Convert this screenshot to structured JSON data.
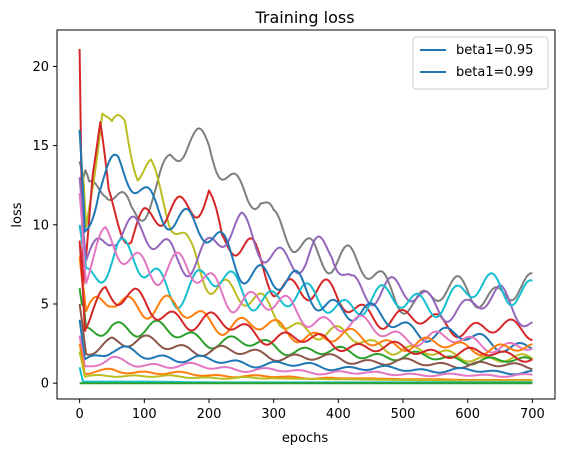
{
  "chart_data": {
    "type": "line",
    "title": "Training loss",
    "xlabel": "epochs",
    "ylabel": "loss",
    "xlim": [
      -35,
      735
    ],
    "ylim": [
      -1,
      22.3
    ],
    "xticks": [
      0,
      100,
      200,
      300,
      400,
      500,
      600,
      700
    ],
    "yticks": [
      0,
      5,
      10,
      15,
      20
    ],
    "legend_placement": "top-right",
    "grid": false,
    "legend": [
      {
        "name": "beta1=0.95",
        "color": "#1f77b4"
      },
      {
        "name": "beta1=0.99",
        "color": "#1f77b4"
      }
    ],
    "series_colors": [
      "#1f77b4",
      "#ff7f0e",
      "#2ca02c",
      "#d62728",
      "#9467bd",
      "#8c564b",
      "#e377c2",
      "#7f7f7f",
      "#bcbd22",
      "#17becf"
    ],
    "series": [
      {
        "color": "#7f7f7f",
        "points": [
          [
            0,
            14
          ],
          [
            15,
            11.5
          ],
          [
            40,
            12
          ],
          [
            80,
            11
          ],
          [
            120,
            12.5
          ],
          [
            140,
            14
          ],
          [
            170,
            14.7
          ],
          [
            200,
            15
          ],
          [
            230,
            13.5
          ],
          [
            260,
            12
          ],
          [
            280,
            11.5
          ],
          [
            300,
            9.5
          ],
          [
            330,
            9
          ],
          [
            360,
            8.8
          ],
          [
            400,
            7.8
          ],
          [
            440,
            7
          ],
          [
            480,
            6
          ],
          [
            520,
            5.2
          ],
          [
            560,
            5.5
          ],
          [
            600,
            5.8
          ],
          [
            640,
            5.8
          ],
          [
            680,
            6
          ],
          [
            700,
            5.7
          ]
        ]
      },
      {
        "color": "#bcbd22",
        "points": [
          [
            0,
            16
          ],
          [
            10,
            9
          ],
          [
            25,
            14
          ],
          [
            35,
            17.3
          ],
          [
            50,
            16
          ],
          [
            70,
            17.1
          ],
          [
            90,
            14
          ],
          [
            110,
            13.4
          ],
          [
            140,
            10
          ],
          [
            170,
            8
          ],
          [
            200,
            7
          ],
          [
            250,
            5.5
          ],
          [
            300,
            4.2
          ],
          [
            350,
            3.5
          ],
          [
            400,
            3
          ],
          [
            450,
            2.5
          ],
          [
            500,
            2.2
          ],
          [
            550,
            1.8
          ],
          [
            600,
            1.7
          ],
          [
            650,
            1.5
          ],
          [
            700,
            1.5
          ]
        ]
      },
      {
        "color": "#d62728",
        "points": [
          [
            0,
            21.1
          ],
          [
            5,
            6
          ],
          [
            20,
            13.5
          ],
          [
            32,
            16.2
          ],
          [
            45,
            12
          ],
          [
            60,
            11
          ],
          [
            80,
            9.5
          ],
          [
            100,
            10
          ],
          [
            130,
            10.2
          ],
          [
            160,
            11
          ],
          [
            200,
            12.5
          ],
          [
            220,
            9
          ],
          [
            260,
            8
          ],
          [
            300,
            6.5
          ],
          [
            350,
            6.2
          ],
          [
            400,
            5
          ],
          [
            450,
            4.5
          ],
          [
            500,
            4
          ],
          [
            550,
            3.8
          ],
          [
            600,
            3.6
          ],
          [
            650,
            3.4
          ],
          [
            700,
            3.2
          ]
        ]
      },
      {
        "color": "#9467bd",
        "points": [
          [
            0,
            13
          ],
          [
            10,
            8
          ],
          [
            50,
            10
          ],
          [
            100,
            9
          ],
          [
            150,
            8
          ],
          [
            200,
            8.5
          ],
          [
            250,
            9.5
          ],
          [
            300,
            8.5
          ],
          [
            350,
            7.5
          ],
          [
            390,
            8.2
          ],
          [
            420,
            6.5
          ],
          [
            460,
            6
          ],
          [
            500,
            5.5
          ],
          [
            550,
            5
          ],
          [
            600,
            4.8
          ],
          [
            650,
            5.2
          ],
          [
            700,
            4
          ]
        ]
      },
      {
        "color": "#17becf",
        "points": [
          [
            0,
            10
          ],
          [
            10,
            7
          ],
          [
            60,
            8
          ],
          [
            100,
            7
          ],
          [
            150,
            6
          ],
          [
            200,
            6.5
          ],
          [
            250,
            5.8
          ],
          [
            300,
            5.5
          ],
          [
            350,
            5.2
          ],
          [
            400,
            5
          ],
          [
            450,
            5.3
          ],
          [
            500,
            5
          ],
          [
            550,
            5.3
          ],
          [
            600,
            5.6
          ],
          [
            650,
            6
          ],
          [
            700,
            6.2
          ]
        ]
      },
      {
        "color": "#1f77b4",
        "points": [
          [
            0,
            16
          ],
          [
            8,
            10
          ],
          [
            30,
            12.5
          ],
          [
            60,
            13.2
          ],
          [
            100,
            12
          ],
          [
            140,
            11
          ],
          [
            180,
            9.5
          ],
          [
            220,
            8.5
          ],
          [
            260,
            7.5
          ],
          [
            300,
            6.5
          ],
          [
            350,
            5.6
          ],
          [
            400,
            5
          ],
          [
            450,
            4.2
          ],
          [
            500,
            3.6
          ],
          [
            550,
            3.2
          ],
          [
            600,
            2.8
          ],
          [
            650,
            2.5
          ],
          [
            700,
            2.3
          ]
        ]
      },
      {
        "color": "#e377c2",
        "points": [
          [
            0,
            12
          ],
          [
            10,
            7
          ],
          [
            40,
            8.5
          ],
          [
            80,
            8
          ],
          [
            120,
            7.5
          ],
          [
            160,
            7
          ],
          [
            200,
            6.2
          ],
          [
            250,
            5.5
          ],
          [
            300,
            4.8
          ],
          [
            350,
            4.3
          ],
          [
            400,
            3.8
          ],
          [
            450,
            3.4
          ],
          [
            500,
            3
          ],
          [
            550,
            2.8
          ],
          [
            600,
            2.6
          ],
          [
            650,
            2.4
          ],
          [
            700,
            2.2
          ]
        ]
      },
      {
        "color": "#ff7f0e",
        "points": [
          [
            0,
            8
          ],
          [
            10,
            4
          ],
          [
            50,
            5.5
          ],
          [
            100,
            5
          ],
          [
            150,
            4.5
          ],
          [
            200,
            4
          ],
          [
            250,
            3.7
          ],
          [
            300,
            3.4
          ],
          [
            350,
            3.1
          ],
          [
            400,
            2.9
          ],
          [
            450,
            2.7
          ],
          [
            500,
            2.5
          ],
          [
            550,
            2.4
          ],
          [
            600,
            2.3
          ],
          [
            650,
            2.2
          ],
          [
            700,
            2.1
          ]
        ]
      },
      {
        "color": "#2ca02c",
        "points": [
          [
            0,
            6
          ],
          [
            10,
            3
          ],
          [
            50,
            3.8
          ],
          [
            100,
            3.4
          ],
          [
            150,
            3.1
          ],
          [
            200,
            2.8
          ],
          [
            250,
            2.5
          ],
          [
            300,
            2.3
          ],
          [
            350,
            2.1
          ],
          [
            400,
            1.9
          ],
          [
            450,
            1.8
          ],
          [
            500,
            1.7
          ],
          [
            550,
            1.6
          ],
          [
            600,
            1.5
          ],
          [
            650,
            1.4
          ],
          [
            700,
            1.4
          ]
        ]
      },
      {
        "color": "#8c564b",
        "points": [
          [
            0,
            5
          ],
          [
            10,
            2
          ],
          [
            50,
            2.8
          ],
          [
            100,
            2.5
          ],
          [
            150,
            2.3
          ],
          [
            200,
            2.1
          ],
          [
            250,
            1.9
          ],
          [
            300,
            1.8
          ],
          [
            350,
            1.6
          ],
          [
            400,
            1.5
          ],
          [
            450,
            1.4
          ],
          [
            500,
            1.3
          ],
          [
            550,
            1.2
          ],
          [
            600,
            1.2
          ],
          [
            650,
            1.1
          ],
          [
            700,
            1.1
          ]
        ]
      },
      {
        "color": "#d62728",
        "points": [
          [
            0,
            9
          ],
          [
            8,
            4
          ],
          [
            40,
            6
          ],
          [
            80,
            5
          ],
          [
            120,
            4.5
          ],
          [
            160,
            4.2
          ],
          [
            200,
            3.8
          ],
          [
            250,
            3.4
          ],
          [
            300,
            3
          ],
          [
            350,
            2.7
          ],
          [
            400,
            2.5
          ],
          [
            450,
            2.3
          ],
          [
            500,
            2.1
          ],
          [
            550,
            2
          ],
          [
            600,
            1.9
          ],
          [
            650,
            1.8
          ],
          [
            700,
            1.7
          ]
        ]
      },
      {
        "color": "#1f77b4",
        "points": [
          [
            0,
            4
          ],
          [
            8,
            1.5
          ],
          [
            50,
            2
          ],
          [
            100,
            1.8
          ],
          [
            150,
            1.6
          ],
          [
            200,
            1.4
          ],
          [
            250,
            1.3
          ],
          [
            300,
            1.2
          ],
          [
            350,
            1.1
          ],
          [
            400,
            1
          ],
          [
            450,
            0.9
          ],
          [
            500,
            0.9
          ],
          [
            550,
            0.8
          ],
          [
            600,
            0.8
          ],
          [
            650,
            0.7
          ],
          [
            700,
            0.7
          ]
        ]
      },
      {
        "color": "#e377c2",
        "points": [
          [
            0,
            3
          ],
          [
            8,
            1
          ],
          [
            50,
            1.4
          ],
          [
            100,
            1.2
          ],
          [
            150,
            1.1
          ],
          [
            200,
            1
          ],
          [
            250,
            0.9
          ],
          [
            300,
            0.8
          ],
          [
            350,
            0.7
          ],
          [
            400,
            0.7
          ],
          [
            450,
            0.6
          ],
          [
            500,
            0.6
          ],
          [
            550,
            0.5
          ],
          [
            600,
            0.5
          ],
          [
            650,
            0.5
          ],
          [
            700,
            0.5
          ]
        ]
      },
      {
        "color": "#ff7f0e",
        "points": [
          [
            0,
            2.5
          ],
          [
            8,
            0.6
          ],
          [
            50,
            0.8
          ],
          [
            100,
            0.7
          ],
          [
            150,
            0.6
          ],
          [
            200,
            0.5
          ],
          [
            250,
            0.45
          ],
          [
            300,
            0.4
          ],
          [
            350,
            0.35
          ],
          [
            400,
            0.3
          ],
          [
            450,
            0.3
          ],
          [
            500,
            0.25
          ],
          [
            550,
            0.25
          ],
          [
            600,
            0.2
          ],
          [
            650,
            0.2
          ],
          [
            700,
            0.2
          ]
        ]
      },
      {
        "color": "#bcbd22",
        "points": [
          [
            0,
            2
          ],
          [
            8,
            0.4
          ],
          [
            50,
            0.5
          ],
          [
            100,
            0.45
          ],
          [
            150,
            0.4
          ],
          [
            200,
            0.35
          ],
          [
            300,
            0.3
          ],
          [
            400,
            0.25
          ],
          [
            500,
            0.2
          ],
          [
            600,
            0.15
          ],
          [
            700,
            0.15
          ]
        ]
      },
      {
        "color": "#17becf",
        "points": [
          [
            0,
            1
          ],
          [
            5,
            0.1
          ],
          [
            50,
            0.1
          ],
          [
            100,
            0.1
          ],
          [
            200,
            0.05
          ],
          [
            300,
            0.05
          ],
          [
            400,
            0.05
          ],
          [
            500,
            0.05
          ],
          [
            600,
            0.05
          ],
          [
            700,
            0.05
          ]
        ]
      },
      {
        "color": "#2ca02c",
        "points": [
          [
            0,
            0
          ],
          [
            5,
            0
          ],
          [
            100,
            0
          ],
          [
            300,
            0
          ],
          [
            500,
            0
          ],
          [
            700,
            0
          ]
        ]
      }
    ]
  }
}
